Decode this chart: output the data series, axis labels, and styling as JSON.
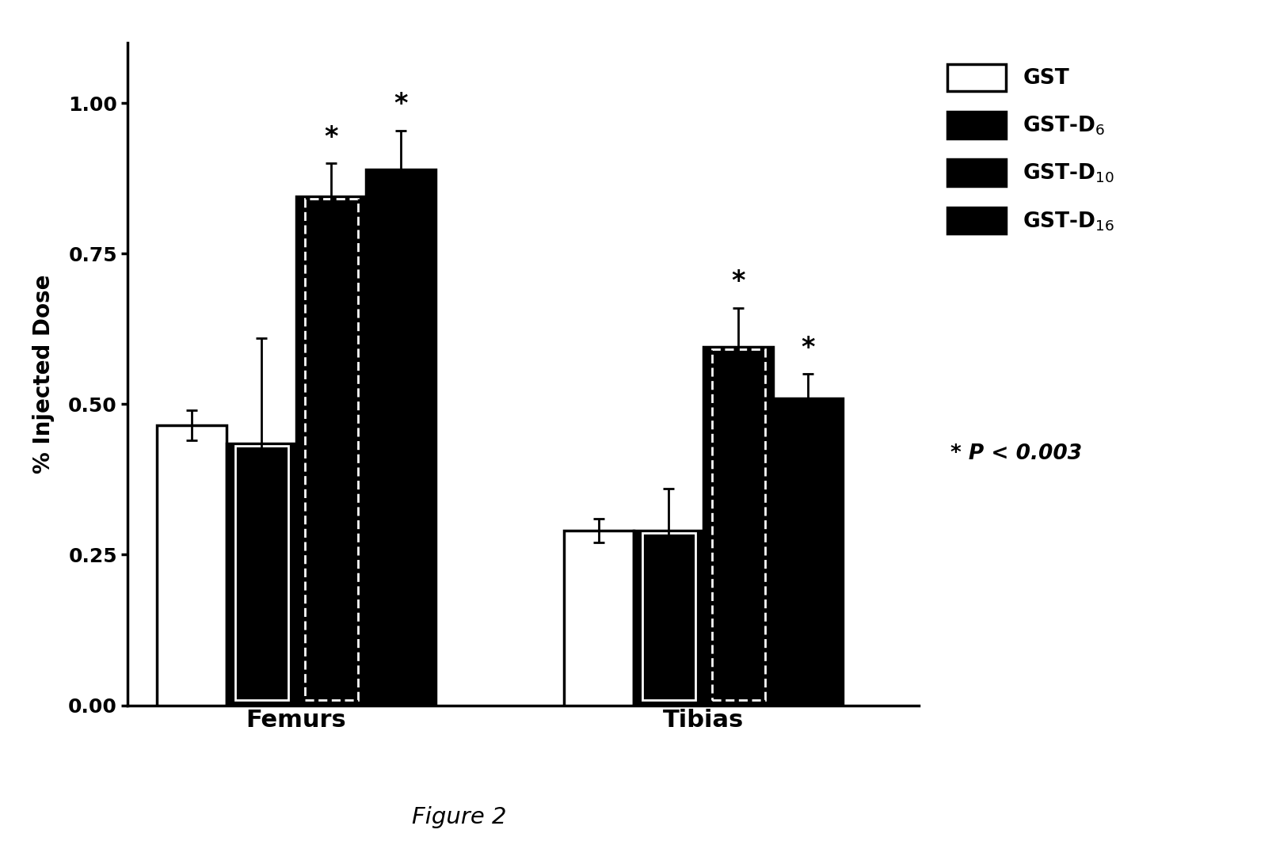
{
  "groups": [
    "Femurs",
    "Tibias"
  ],
  "series": [
    "GST",
    "GST-D6",
    "GST-D10",
    "GST-D16"
  ],
  "values": {
    "Femurs": [
      0.465,
      0.435,
      0.845,
      0.89
    ],
    "Tibias": [
      0.29,
      0.29,
      0.595,
      0.51
    ]
  },
  "errors": {
    "Femurs": [
      0.025,
      0.175,
      0.055,
      0.065
    ],
    "Tibias": [
      0.02,
      0.07,
      0.065,
      0.04
    ]
  },
  "significant": {
    "Femurs": [
      false,
      false,
      true,
      true
    ],
    "Tibias": [
      false,
      false,
      true,
      true
    ]
  },
  "ylabel": "% Injected Dose",
  "ylim": [
    0,
    1.1
  ],
  "yticks": [
    0.0,
    0.25,
    0.5,
    0.75,
    1.0
  ],
  "pvalue_text": "* P < 0.003",
  "figure_label": "Figure 2",
  "background_color": "white",
  "label_fontsize": 20,
  "tick_fontsize": 18,
  "legend_fontsize": 19,
  "group_label_fontsize": 22,
  "asterisk_fontsize": 24
}
